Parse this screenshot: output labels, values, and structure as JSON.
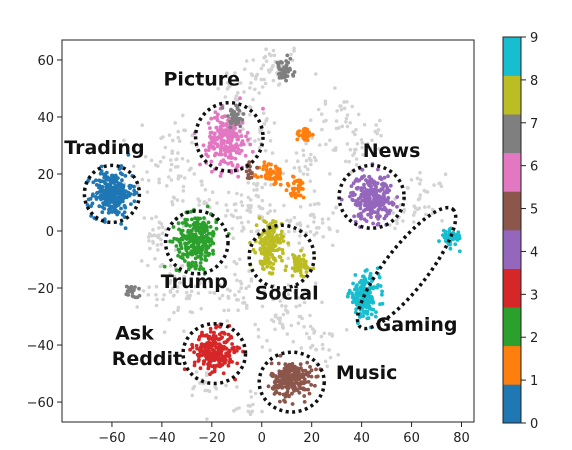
{
  "chart_data": {
    "type": "scatter",
    "title": "",
    "xlabel": "",
    "ylabel": "",
    "xlim": [
      -80,
      85
    ],
    "ylim": [
      -67,
      67
    ],
    "x_ticks": [
      -60,
      -40,
      -20,
      0,
      20,
      40,
      60,
      80
    ],
    "y_ticks": [
      -60,
      -40,
      -20,
      0,
      20,
      40,
      60
    ],
    "x_tick_labels": [
      "−60",
      "−40",
      "−20",
      "0",
      "20",
      "40",
      "60",
      "80"
    ],
    "y_tick_labels": [
      "−60",
      "−40",
      "−20",
      "0",
      "20",
      "40",
      "60"
    ],
    "grid": false,
    "colorbar": {
      "min": 0,
      "max": 9,
      "ticks": [
        "0",
        "1",
        "2",
        "3",
        "4",
        "5",
        "6",
        "7",
        "8",
        "9"
      ],
      "colors": [
        "#1f77b4",
        "#ff7f0e",
        "#2ca02c",
        "#d62728",
        "#9467bd",
        "#8c564b",
        "#e377c2",
        "#7f7f7f",
        "#bcbd22",
        "#17becf"
      ]
    },
    "clusters": [
      {
        "class": 0,
        "cx": -60,
        "cy": 13,
        "sx": 4,
        "sy": 4,
        "n": 260
      },
      {
        "class": 1,
        "cx": 17,
        "cy": 34,
        "sx": 1.5,
        "sy": 1.2,
        "n": 40
      },
      {
        "class": 1,
        "cx": 4,
        "cy": 20,
        "sx": 2.5,
        "sy": 2,
        "n": 60
      },
      {
        "class": 1,
        "cx": 14,
        "cy": 15,
        "sx": 2.5,
        "sy": 2,
        "n": 40
      },
      {
        "class": 2,
        "cx": -26,
        "cy": -3,
        "sx": 4,
        "sy": 4.5,
        "n": 260
      },
      {
        "class": 3,
        "cx": -19,
        "cy": -42,
        "sx": 4,
        "sy": 3.5,
        "n": 260
      },
      {
        "class": 4,
        "cx": 44,
        "cy": 12,
        "sx": 4,
        "sy": 4,
        "n": 260
      },
      {
        "class": 5,
        "cx": 12,
        "cy": -52,
        "sx": 4,
        "sy": 3,
        "n": 240
      },
      {
        "class": 5,
        "cx": -6,
        "cy": 21,
        "sx": 1.5,
        "sy": 2,
        "n": 15
      },
      {
        "class": 6,
        "cx": -14,
        "cy": 32,
        "sx": 4,
        "sy": 5,
        "n": 220
      },
      {
        "class": 7,
        "cx": 9,
        "cy": 56,
        "sx": 1.8,
        "sy": 2,
        "n": 45
      },
      {
        "class": 7,
        "cx": -11,
        "cy": 40,
        "sx": 2.2,
        "sy": 2,
        "n": 45
      },
      {
        "class": 7,
        "cx": -52,
        "cy": -21,
        "sx": 1.2,
        "sy": 1.3,
        "n": 25
      },
      {
        "class": 8,
        "cx": 3,
        "cy": -5,
        "sx": 2.5,
        "sy": 4,
        "n": 180
      },
      {
        "class": 8,
        "cx": 15,
        "cy": -12,
        "sx": 2.5,
        "sy": 2,
        "n": 70
      },
      {
        "class": 9,
        "cx": 41,
        "cy": -23,
        "sx": 3,
        "sy": 3.5,
        "n": 180
      },
      {
        "class": 9,
        "cx": 76,
        "cy": -2,
        "sx": 2,
        "sy": 1.5,
        "n": 50
      }
    ],
    "background_points_color": "#d3d3d3",
    "annotations": [
      {
        "text": "Trading",
        "x": -63,
        "y": 27
      },
      {
        "text": "Picture",
        "x": -24,
        "y": 51
      },
      {
        "text": "News",
        "x": 52,
        "y": 26
      },
      {
        "text": "Trump",
        "x": -27,
        "y": -20
      },
      {
        "text": "Social",
        "x": 10,
        "y": -24
      },
      {
        "text": "Gaming",
        "x": 62,
        "y": -35
      },
      {
        "text": "Ask",
        "x": -51,
        "y": -38
      },
      {
        "text": "Reddit",
        "x": -46,
        "y": -47
      },
      {
        "text": "Music",
        "x": 42,
        "y": -52
      }
    ],
    "highlight_circles": [
      {
        "cx": -60,
        "cy": 13,
        "rx": 11,
        "ry": 10
      },
      {
        "cx": -13,
        "cy": 33,
        "rx": 13.5,
        "ry": 12
      },
      {
        "cx": 44,
        "cy": 12,
        "rx": 13,
        "ry": 11
      },
      {
        "cx": -26,
        "cy": -4,
        "rx": 12.5,
        "ry": 11
      },
      {
        "cx": 8,
        "cy": -9,
        "rx": 13,
        "ry": 11
      },
      {
        "cx": 12,
        "cy": -53,
        "rx": 13,
        "ry": 10.5
      },
      {
        "cx": -19,
        "cy": -43,
        "rx": 12.5,
        "ry": 10.5
      },
      {
        "cx": 58,
        "cy": -13,
        "rx": 30,
        "ry": 7.5,
        "angle": -52
      }
    ]
  }
}
